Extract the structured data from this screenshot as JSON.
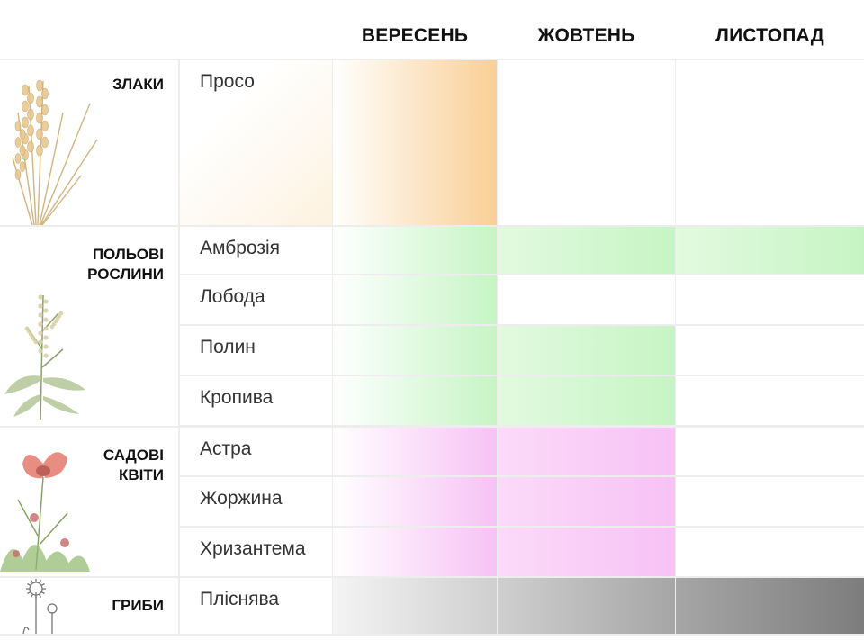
{
  "months": [
    "ВЕРЕСЕНЬ",
    "ЖОВТЕНЬ",
    "ЛИСТОПАД"
  ],
  "colors": {
    "cereal": "#f9cf95",
    "field": "#c6f5c4",
    "garden": "#f7c2f5",
    "fungi_sep": "#cfcfcf",
    "fungi_oct": "#a6a6a6",
    "fungi_nov": "#7d7d7d"
  },
  "categories": [
    {
      "label": "ЗЛАКИ",
      "icon": "wheat-icon",
      "plants": [
        {
          "name": "Просо",
          "months": [
            true,
            false,
            false
          ]
        }
      ]
    },
    {
      "label": "ПОЛЬОВІ\nРОСЛИНИ",
      "icon": "field-plant-icon",
      "plants": [
        {
          "name": "Амброзія",
          "months": [
            true,
            true,
            true
          ]
        },
        {
          "name": "Лобода",
          "months": [
            true,
            false,
            false
          ]
        },
        {
          "name": "Полин",
          "months": [
            true,
            true,
            false
          ]
        },
        {
          "name": "Кропива",
          "months": [
            true,
            true,
            false
          ]
        }
      ]
    },
    {
      "label": "САДОВІ\nКВІТИ",
      "icon": "poppy-flower-icon",
      "plants": [
        {
          "name": "Астра",
          "months": [
            true,
            true,
            false
          ]
        },
        {
          "name": "Жоржина",
          "months": [
            true,
            true,
            false
          ]
        },
        {
          "name": "Хризантема",
          "months": [
            true,
            true,
            false
          ]
        }
      ]
    },
    {
      "label": "ГРИБИ",
      "icon": "mold-fungus-icon",
      "plants": [
        {
          "name": "Пліснява",
          "months": [
            true,
            true,
            true
          ]
        }
      ]
    }
  ]
}
